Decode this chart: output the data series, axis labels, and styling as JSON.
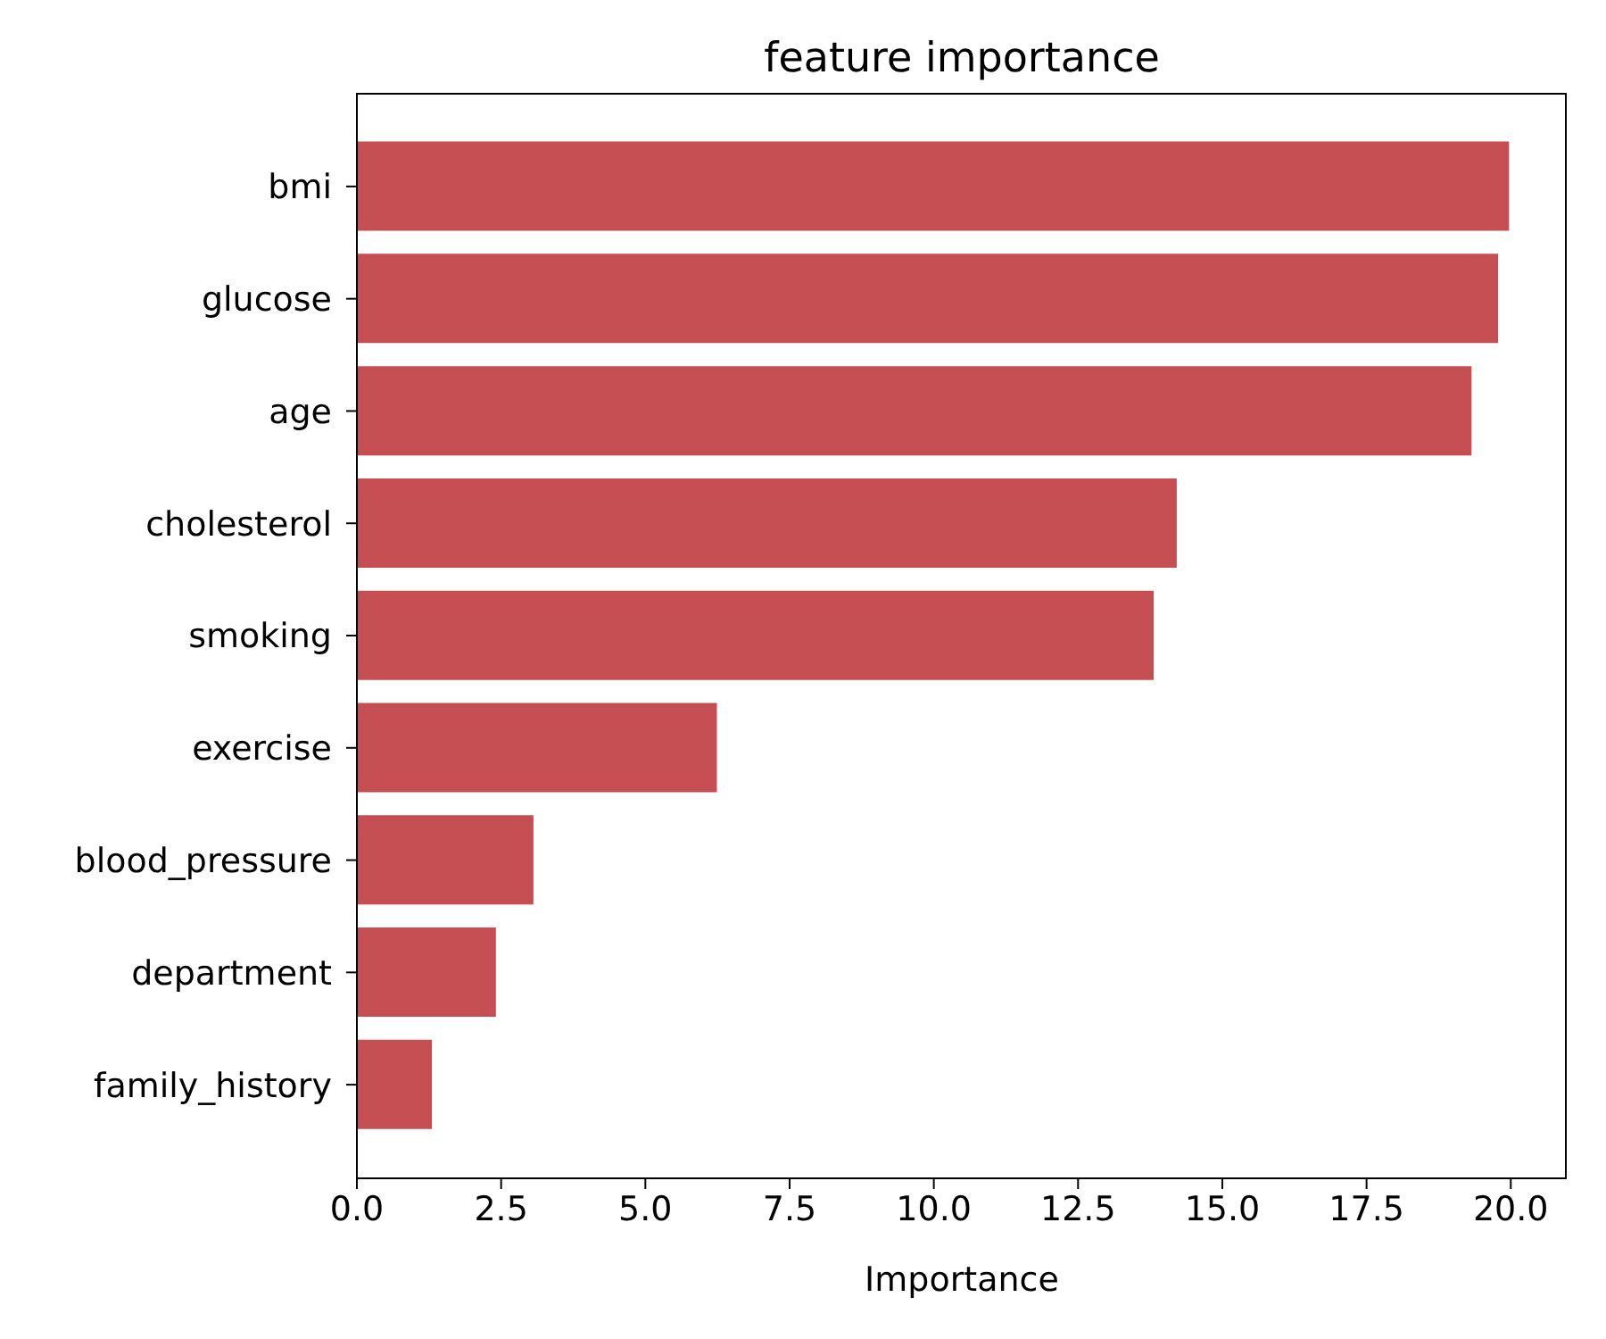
{
  "chart_data": {
    "type": "bar",
    "orientation": "horizontal",
    "title": "feature importance",
    "xlabel": "Importance",
    "categories": [
      "bmi",
      "glucose",
      "age",
      "cholesterol",
      "smoking",
      "exercise",
      "blood_pressure",
      "department",
      "family_history"
    ],
    "values": [
      19.97,
      19.78,
      19.32,
      14.21,
      13.81,
      6.24,
      3.06,
      2.41,
      1.3
    ],
    "color": "#c44e52",
    "xlim": [
      0,
      20.97
    ],
    "xticks": [
      {
        "value": 0,
        "label": "0.0"
      },
      2.5,
      {
        "value": 5,
        "label": "5.0"
      },
      7.5,
      {
        "value": 10,
        "label": "10.0"
      },
      12.5,
      {
        "value": 15,
        "label": "15.0"
      },
      17.5,
      {
        "value": 20,
        "label": "20.0"
      }
    ]
  }
}
